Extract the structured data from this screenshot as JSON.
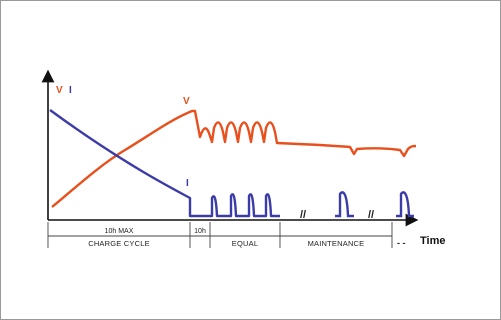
{
  "chart_data": {
    "type": "line",
    "y_axis_labels": {
      "voltage": "V",
      "current": "I"
    },
    "x_axis_label": "Time",
    "series_labels": {
      "voltage": "V",
      "current": "I"
    },
    "colors": {
      "voltage": "#e8501e",
      "current": "#3c3ca8",
      "axis": "#111111"
    },
    "phases": [
      {
        "name": "CHARGE CYCLE",
        "sublabel": "10h MAX"
      },
      {
        "name": "",
        "sublabel": "10h"
      },
      {
        "name": "EQUAL",
        "sublabel": ""
      },
      {
        "name": "MAINTENANCE",
        "sublabel": ""
      }
    ],
    "continuation": "- -",
    "axis_break_marks": [
      "//",
      "//"
    ]
  }
}
